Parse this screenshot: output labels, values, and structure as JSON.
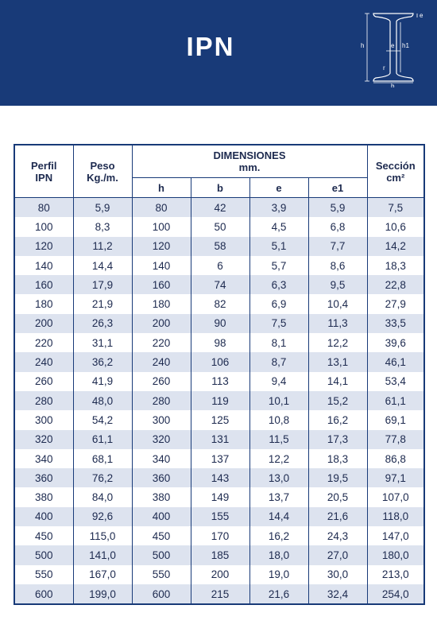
{
  "title": "IPN",
  "diagram": {
    "labels": {
      "h": "h",
      "h1": "h1",
      "e": "e",
      "e_top": "e",
      "r": "r",
      "b": "b"
    }
  },
  "table": {
    "headers": {
      "perfil": [
        "Perfil",
        "IPN"
      ],
      "peso": [
        "Peso",
        "Kg./m."
      ],
      "dimensiones": [
        "DIMENSIONES",
        "mm."
      ],
      "seccion": [
        "Sección",
        "cm²"
      ],
      "dims": [
        "h",
        "b",
        "e",
        "e1"
      ]
    },
    "rows": [
      [
        "80",
        "5,9",
        "80",
        "42",
        "3,9",
        "5,9",
        "7,5"
      ],
      [
        "100",
        "8,3",
        "100",
        "50",
        "4,5",
        "6,8",
        "10,6"
      ],
      [
        "120",
        "11,2",
        "120",
        "58",
        "5,1",
        "7,7",
        "14,2"
      ],
      [
        "140",
        "14,4",
        "140",
        "6",
        "5,7",
        "8,6",
        "18,3"
      ],
      [
        "160",
        "17,9",
        "160",
        "74",
        "6,3",
        "9,5",
        "22,8"
      ],
      [
        "180",
        "21,9",
        "180",
        "82",
        "6,9",
        "10,4",
        "27,9"
      ],
      [
        "200",
        "26,3",
        "200",
        "90",
        "7,5",
        "11,3",
        "33,5"
      ],
      [
        "220",
        "31,1",
        "220",
        "98",
        "8,1",
        "12,2",
        "39,6"
      ],
      [
        "240",
        "36,2",
        "240",
        "106",
        "8,7",
        "13,1",
        "46,1"
      ],
      [
        "260",
        "41,9",
        "260",
        "113",
        "9,4",
        "14,1",
        "53,4"
      ],
      [
        "280",
        "48,0",
        "280",
        "119",
        "10,1",
        "15,2",
        "61,1"
      ],
      [
        "300",
        "54,2",
        "300",
        "125",
        "10,8",
        "16,2",
        "69,1"
      ],
      [
        "320",
        "61,1",
        "320",
        "131",
        "11,5",
        "17,3",
        "77,8"
      ],
      [
        "340",
        "68,1",
        "340",
        "137",
        "12,2",
        "18,3",
        "86,8"
      ],
      [
        "360",
        "76,2",
        "360",
        "143",
        "13,0",
        "19,5",
        "97,1"
      ],
      [
        "380",
        "84,0",
        "380",
        "149",
        "13,7",
        "20,5",
        "107,0"
      ],
      [
        "400",
        "92,6",
        "400",
        "155",
        "14,4",
        "21,6",
        "118,0"
      ],
      [
        "450",
        "115,0",
        "450",
        "170",
        "16,2",
        "24,3",
        "147,0"
      ],
      [
        "500",
        "141,0",
        "500",
        "185",
        "18,0",
        "27,0",
        "180,0"
      ],
      [
        "550",
        "167,0",
        "550",
        "200",
        "19,0",
        "30,0",
        "213,0"
      ],
      [
        "600",
        "199,0",
        "600",
        "215",
        "21,6",
        "32,4",
        "254,0"
      ]
    ]
  },
  "colors": {
    "header_bg": "#183a78",
    "row_alt": "#dde3ef",
    "text": "#1d2a4f"
  }
}
